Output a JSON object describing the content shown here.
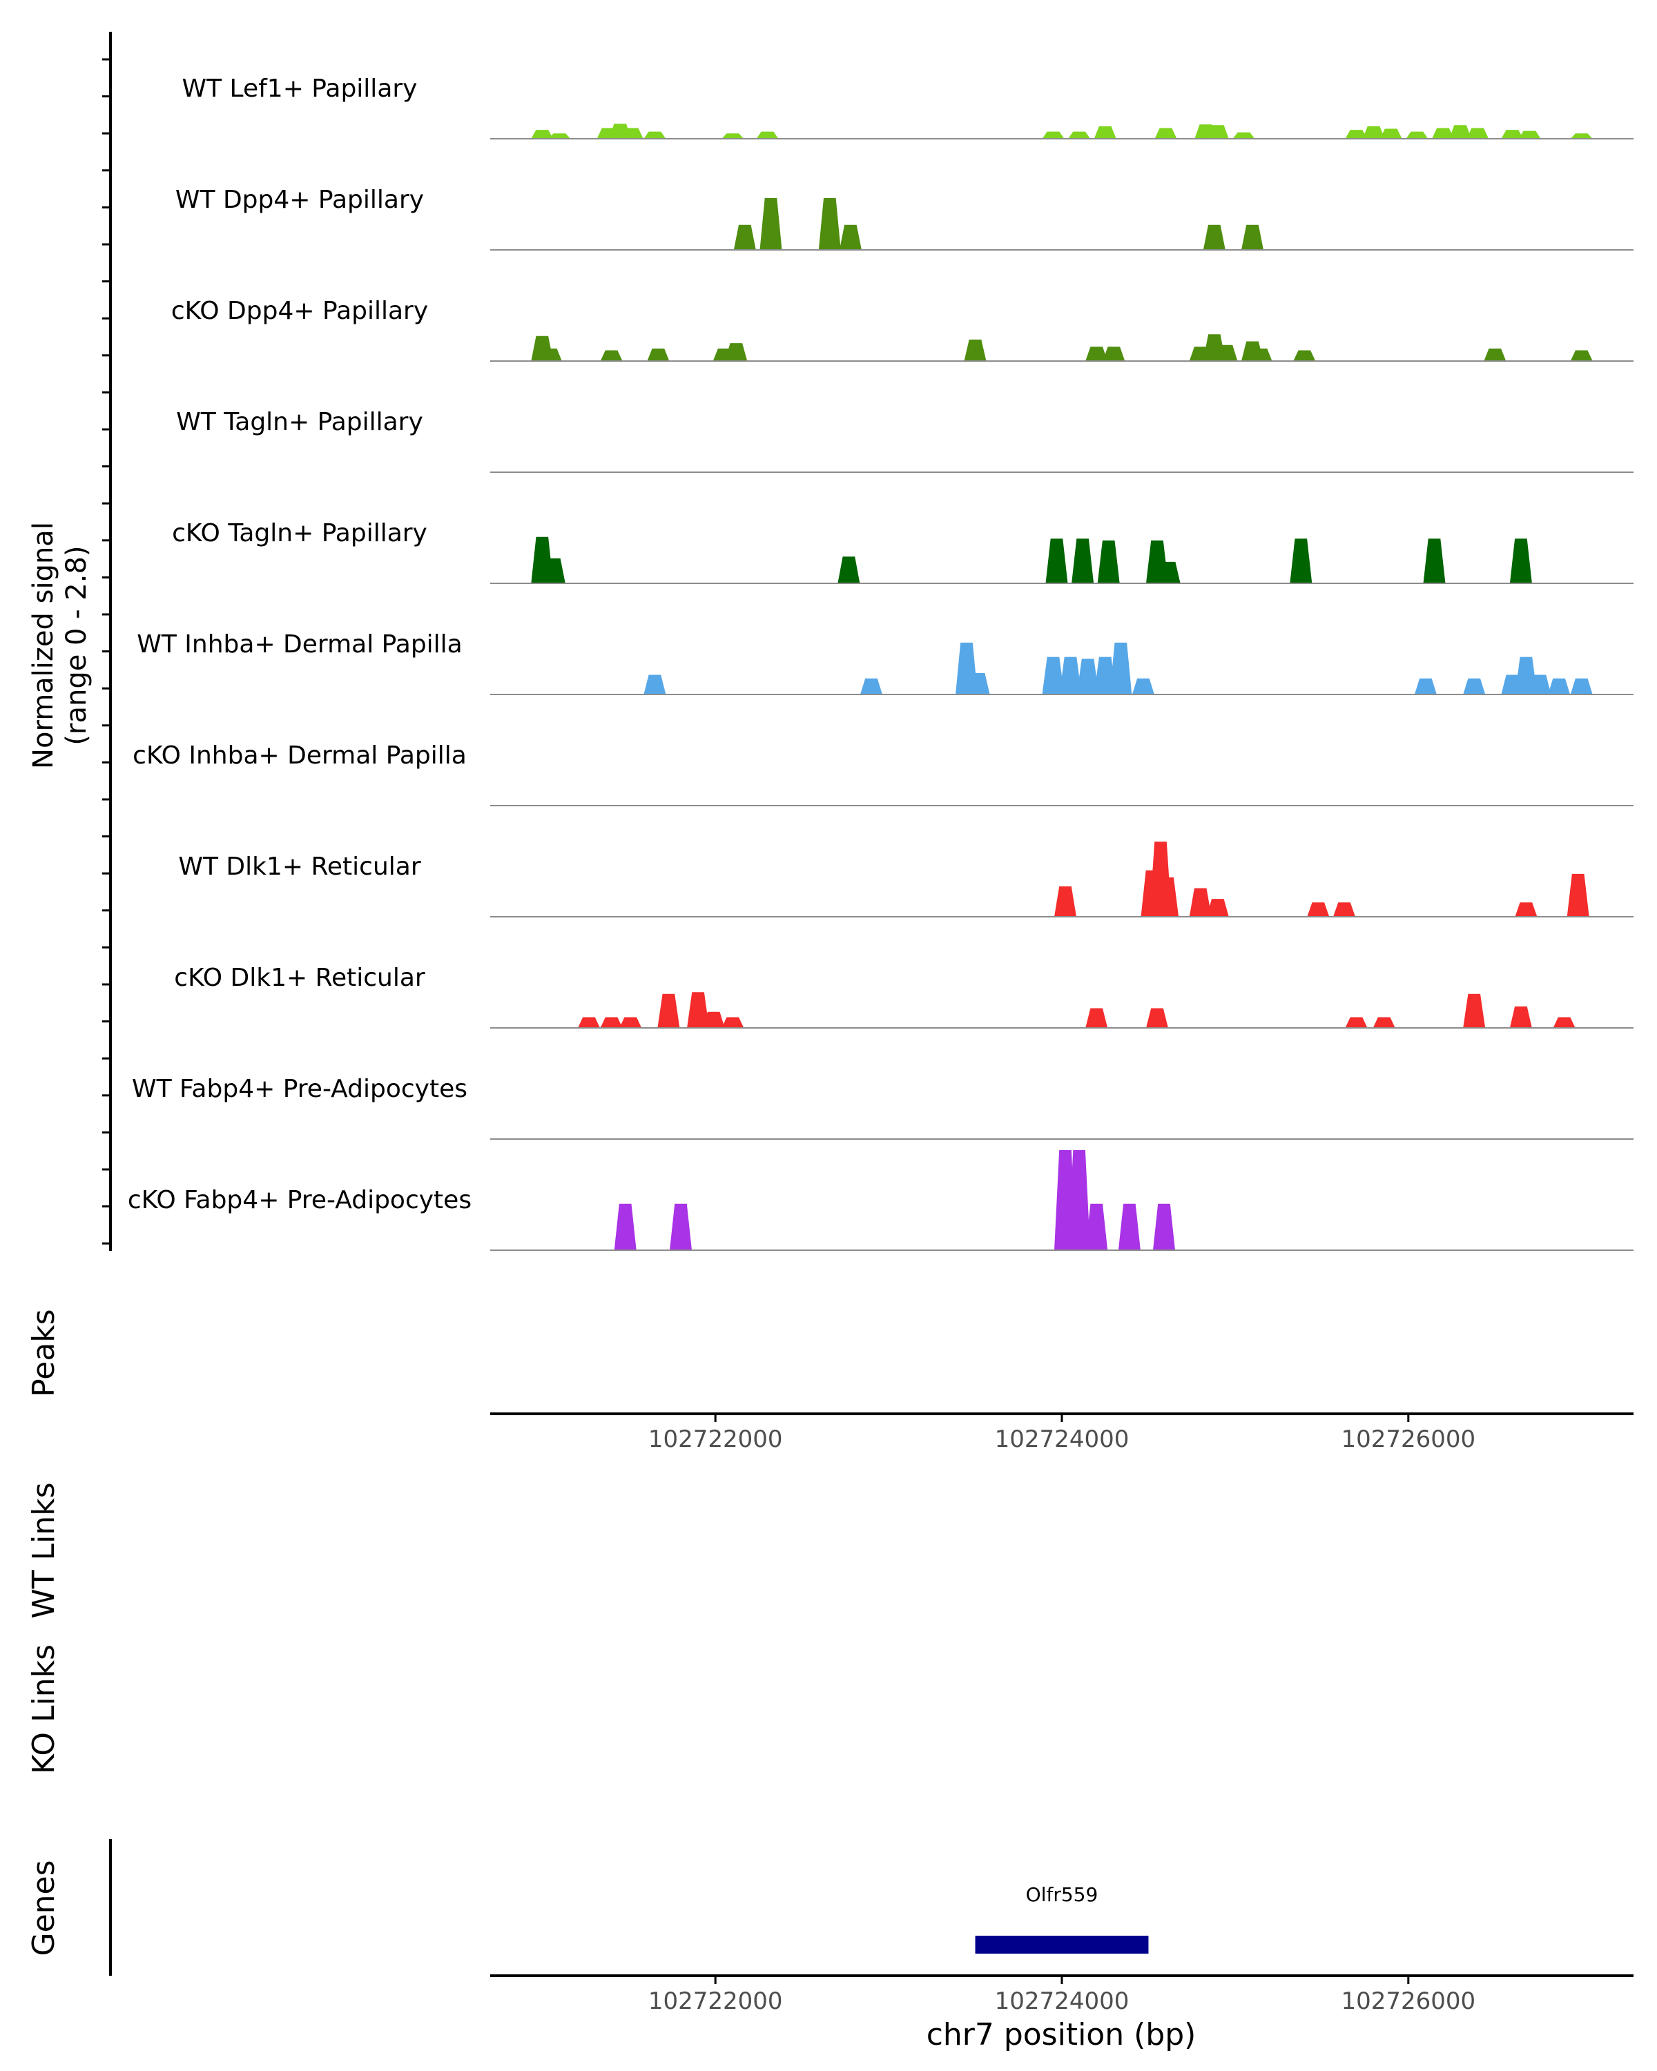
{
  "chart_data": {
    "type": "area",
    "subtype": "genome-coverage-track",
    "chromosome": "chr7",
    "region": [
      102720700,
      102727300
    ],
    "xlabel": "chr7 position (bp)",
    "x_ticks": [
      102722000,
      102724000,
      102726000
    ],
    "x_tick_labels": [
      "102722000",
      "102724000",
      "102726000"
    ],
    "y_axis_label_line1": "Normalized signal",
    "y_axis_label_line2": "(range 0 - 2.8)",
    "y_range": [
      0,
      2.8
    ],
    "series": [
      {
        "name": "WT Lef1+ Papillary",
        "color": "#7fd41e",
        "peaks": [
          [
            102721000,
            0.25
          ],
          [
            102721100,
            0.15
          ],
          [
            102721380,
            0.3
          ],
          [
            102721450,
            0.42
          ],
          [
            102721520,
            0.3
          ],
          [
            102721650,
            0.2
          ],
          [
            102722100,
            0.15
          ],
          [
            102722300,
            0.2
          ],
          [
            102723950,
            0.2
          ],
          [
            102724100,
            0.2
          ],
          [
            102724250,
            0.35
          ],
          [
            102724600,
            0.3
          ],
          [
            102724830,
            0.4
          ],
          [
            102724900,
            0.38
          ],
          [
            102725050,
            0.18
          ],
          [
            102725700,
            0.25
          ],
          [
            102725800,
            0.35
          ],
          [
            102725900,
            0.28
          ],
          [
            102726050,
            0.2
          ],
          [
            102726200,
            0.3
          ],
          [
            102726300,
            0.38
          ],
          [
            102726400,
            0.3
          ],
          [
            102726600,
            0.25
          ],
          [
            102726700,
            0.22
          ],
          [
            102727000,
            0.15
          ]
        ]
      },
      {
        "name": "WT Dpp4+ Papillary",
        "color": "#4e8d0e",
        "peaks": [
          [
            102722170,
            0.7
          ],
          [
            102722320,
            1.45
          ],
          [
            102722660,
            1.45
          ],
          [
            102722780,
            0.7
          ],
          [
            102724880,
            0.7
          ],
          [
            102725100,
            0.7
          ]
        ]
      },
      {
        "name": "cKO Dpp4+ Papillary",
        "color": "#4e8d0e",
        "peaks": [
          [
            102721000,
            0.7
          ],
          [
            102721050,
            0.35
          ],
          [
            102721400,
            0.3
          ],
          [
            102721670,
            0.35
          ],
          [
            102722050,
            0.35
          ],
          [
            102722120,
            0.5
          ],
          [
            102723500,
            0.6
          ],
          [
            102724200,
            0.4
          ],
          [
            102724300,
            0.4
          ],
          [
            102724800,
            0.4
          ],
          [
            102724880,
            0.75
          ],
          [
            102724950,
            0.45
          ],
          [
            102725100,
            0.55
          ],
          [
            102725150,
            0.35
          ],
          [
            102725400,
            0.3
          ],
          [
            102726500,
            0.35
          ],
          [
            102727000,
            0.3
          ]
        ]
      },
      {
        "name": "WT Tagln+ Papillary",
        "color": "#006400",
        "peaks": []
      },
      {
        "name": "cKO Tagln+ Papillary",
        "color": "#006400",
        "peaks": [
          [
            102721000,
            1.3
          ],
          [
            102721070,
            0.7
          ],
          [
            102722770,
            0.75
          ],
          [
            102723970,
            1.25
          ],
          [
            102724120,
            1.25
          ],
          [
            102724270,
            1.2
          ],
          [
            102724550,
            1.2
          ],
          [
            102724620,
            0.6
          ],
          [
            102725380,
            1.25
          ],
          [
            102726150,
            1.25
          ],
          [
            102726650,
            1.25
          ]
        ]
      },
      {
        "name": "WT Inhba+ Dermal Papilla",
        "color": "#56a7e8",
        "peaks": [
          [
            102721650,
            0.55
          ],
          [
            102722900,
            0.45
          ],
          [
            102723450,
            1.45
          ],
          [
            102723520,
            0.6
          ],
          [
            102723950,
            1.05
          ],
          [
            102724050,
            1.05
          ],
          [
            102724150,
            1.0
          ],
          [
            102724250,
            1.05
          ],
          [
            102724340,
            1.45
          ],
          [
            102724470,
            0.45
          ],
          [
            102726100,
            0.45
          ],
          [
            102726380,
            0.45
          ],
          [
            102726600,
            0.55
          ],
          [
            102726680,
            1.05
          ],
          [
            102726760,
            0.55
          ],
          [
            102726870,
            0.45
          ],
          [
            102727000,
            0.45
          ]
        ]
      },
      {
        "name": "cKO Inhba+ Dermal Papilla",
        "color": "#56a7e8",
        "peaks": []
      },
      {
        "name": "WT Dlk1+ Reticular",
        "color": "#f42c2c",
        "peaks": [
          [
            102724020,
            0.85
          ],
          [
            102724520,
            1.3
          ],
          [
            102724570,
            2.1
          ],
          [
            102724610,
            1.1
          ],
          [
            102724800,
            0.8
          ],
          [
            102724900,
            0.5
          ],
          [
            102725480,
            0.4
          ],
          [
            102725630,
            0.4
          ],
          [
            102726680,
            0.4
          ],
          [
            102726980,
            1.2
          ]
        ]
      },
      {
        "name": "cKO Dlk1+ Reticular",
        "color": "#f42c2c",
        "peaks": [
          [
            102721270,
            0.3
          ],
          [
            102721400,
            0.3
          ],
          [
            102721510,
            0.3
          ],
          [
            102721730,
            0.95
          ],
          [
            102721900,
            1.0
          ],
          [
            102721990,
            0.45
          ],
          [
            102722100,
            0.3
          ],
          [
            102724200,
            0.55
          ],
          [
            102724550,
            0.55
          ],
          [
            102725700,
            0.3
          ],
          [
            102725860,
            0.3
          ],
          [
            102726380,
            0.95
          ],
          [
            102726650,
            0.6
          ],
          [
            102726900,
            0.3
          ]
        ]
      },
      {
        "name": "WT Fabp4+ Pre-Adipocytes",
        "color": "#a933e6",
        "peaks": []
      },
      {
        "name": "cKO Fabp4+ Pre-Adipocytes",
        "color": "#a933e6",
        "peaks": [
          [
            102721480,
            1.3
          ],
          [
            102721800,
            1.3
          ],
          [
            102724020,
            2.8
          ],
          [
            102724070,
            1.4
          ],
          [
            102724100,
            2.8
          ],
          [
            102724200,
            1.3
          ],
          [
            102724390,
            1.3
          ],
          [
            102724590,
            1.3
          ]
        ]
      }
    ],
    "panels": [
      "Peaks",
      "WT Links",
      "KO Links",
      "Genes"
    ],
    "genes": [
      {
        "name": "Olfr559",
        "start": 102723500,
        "end": 102724500,
        "color": "#00008b"
      }
    ]
  }
}
